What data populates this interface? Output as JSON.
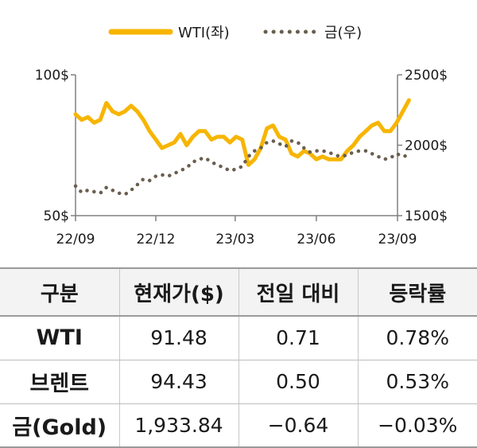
{
  "colors": {
    "wti": "#f7b500",
    "gold": "#6a5e4e",
    "axis": "#808080",
    "text": "#1a1a1a",
    "header_bg": "#f3f3f3"
  },
  "chart_data": {
    "type": "line",
    "legend": {
      "position": "top",
      "items": [
        "WTI(좌)",
        "금(우)"
      ]
    },
    "x_ticks": [
      "22/09",
      "22/12",
      "23/03",
      "23/06",
      "23/09"
    ],
    "y_left": {
      "ticks": [
        "100$",
        "50$"
      ],
      "range": [
        50,
        100
      ]
    },
    "y_right": {
      "ticks": [
        "2500$",
        "2000$",
        "1500$"
      ],
      "range": [
        1500,
        2500
      ]
    },
    "grid": false,
    "series": [
      {
        "name": "WTI(좌)",
        "axis": "left",
        "style": "solid",
        "x": [
          "22/09/01",
          "22/09/08",
          "22/09/15",
          "22/09/22",
          "22/09/29",
          "22/10/06",
          "22/10/13",
          "22/10/20",
          "22/10/27",
          "22/11/03",
          "22/11/10",
          "22/11/17",
          "22/11/24",
          "22/12/01",
          "22/12/08",
          "22/12/15",
          "22/12/22",
          "22/12/29",
          "23/01/05",
          "23/01/12",
          "23/01/19",
          "23/01/26",
          "23/02/02",
          "23/02/09",
          "23/02/16",
          "23/02/23",
          "23/03/02",
          "23/03/09",
          "23/03/16",
          "23/03/23",
          "23/03/30",
          "23/04/06",
          "23/04/13",
          "23/04/20",
          "23/04/27",
          "23/05/04",
          "23/05/11",
          "23/05/18",
          "23/05/25",
          "23/06/01",
          "23/06/08",
          "23/06/15",
          "23/06/22",
          "23/06/29",
          "23/07/06",
          "23/07/13",
          "23/07/20",
          "23/07/27",
          "23/08/03",
          "23/08/10",
          "23/08/17",
          "23/08/24",
          "23/08/31",
          "23/09/07",
          "23/09/14"
        ],
        "values": [
          86,
          84,
          85,
          83,
          84,
          90,
          87,
          86,
          87,
          89,
          87,
          84,
          80,
          77,
          74,
          75,
          76,
          79,
          75,
          78,
          80,
          80,
          77,
          78,
          78,
          76,
          78,
          77,
          68,
          70,
          74,
          81,
          82,
          78,
          77,
          72,
          71,
          73,
          72,
          70,
          71,
          70,
          70,
          70,
          73,
          75,
          78,
          80,
          82,
          83,
          80,
          80,
          83,
          87,
          91
        ]
      },
      {
        "name": "금(우)",
        "axis": "right",
        "style": "dotted",
        "x": [
          "22/09/01",
          "22/09/08",
          "22/09/15",
          "22/09/22",
          "22/09/29",
          "22/10/06",
          "22/10/13",
          "22/10/20",
          "22/10/27",
          "22/11/03",
          "22/11/10",
          "22/11/17",
          "22/11/24",
          "22/12/01",
          "22/12/08",
          "22/12/15",
          "22/12/22",
          "22/12/29",
          "23/01/05",
          "23/01/12",
          "23/01/19",
          "23/01/26",
          "23/02/02",
          "23/02/09",
          "23/02/16",
          "23/02/23",
          "23/03/02",
          "23/03/09",
          "23/03/16",
          "23/03/23",
          "23/03/30",
          "23/04/06",
          "23/04/13",
          "23/04/20",
          "23/04/27",
          "23/05/04",
          "23/05/11",
          "23/05/18",
          "23/05/25",
          "23/06/01",
          "23/06/08",
          "23/06/15",
          "23/06/22",
          "23/06/29",
          "23/07/06",
          "23/07/13",
          "23/07/20",
          "23/07/27",
          "23/08/03",
          "23/08/10",
          "23/08/17",
          "23/08/24",
          "23/08/31",
          "23/09/07",
          "23/09/14"
        ],
        "values": [
          1710,
          1665,
          1680,
          1670,
          1660,
          1700,
          1680,
          1660,
          1650,
          1680,
          1720,
          1760,
          1750,
          1780,
          1790,
          1780,
          1800,
          1820,
          1840,
          1880,
          1900,
          1910,
          1880,
          1860,
          1840,
          1820,
          1830,
          1850,
          1920,
          1960,
          1980,
          2020,
          2030,
          2010,
          1990,
          2030,
          2020,
          1980,
          1950,
          1960,
          1960,
          1950,
          1930,
          1920,
          1930,
          1950,
          1960,
          1960,
          1940,
          1920,
          1900,
          1910,
          1940,
          1920,
          1930
        ]
      }
    ]
  },
  "table": {
    "headers": [
      "구분",
      "현재가($)",
      "전일 대비",
      "등락률"
    ],
    "rows": [
      [
        "WTI",
        "91.48",
        "0.71",
        "0.78%"
      ],
      [
        "브렌트",
        "94.43",
        "0.50",
        "0.53%"
      ],
      [
        "금(Gold)",
        "1,933.84",
        "−0.64",
        "−0.03%"
      ]
    ]
  }
}
